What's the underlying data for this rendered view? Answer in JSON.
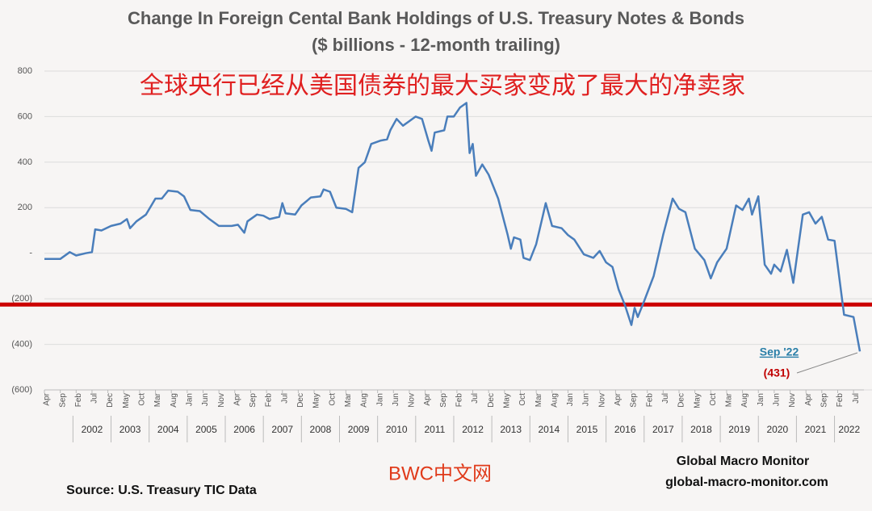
{
  "chart_data": {
    "type": "line",
    "title": "Change In Foreign Cental Bank Holdings of U.S. Treasury Notes & Bonds",
    "subtitle": "($ billions - 12-month trailing)",
    "headline": "全球央行已经从美国债券的最大买家变成了最大的净卖家",
    "watermark": "BWC中文网",
    "source": "Source:  U.S. Treasury TIC Data",
    "brand": "Global Macro Monitor",
    "website": "global-macro-monitor.com",
    "last_point_label": "Sep '22",
    "last_value_label": "(431)",
    "reference_line": {
      "value": -225,
      "color": "#cc0000"
    },
    "color": "#4a7ebb",
    "grid": true,
    "xlim": [
      "2001-04",
      "2022-09"
    ],
    "ylim": [
      -600,
      800
    ],
    "yticks": [
      {
        "value": -600,
        "label": "(600)"
      },
      {
        "value": -400,
        "label": "(400)"
      },
      {
        "value": -200,
        "label": "(200)"
      },
      {
        "value": 0,
        "label": "-"
      },
      200,
      400,
      600,
      800
    ],
    "xticks": [
      {
        "value": "2001-04",
        "label": "Apr"
      },
      {
        "value": "2001-09",
        "label": "Sep"
      },
      {
        "value": "2002-02",
        "label": "Feb"
      },
      {
        "value": "2002-07",
        "label": "Jul"
      },
      {
        "value": "2002-12",
        "label": "Dec"
      },
      {
        "value": "2003-05",
        "label": "May"
      },
      {
        "value": "2003-10",
        "label": "Oct"
      },
      {
        "value": "2004-03",
        "label": "Mar"
      },
      {
        "value": "2004-08",
        "label": "Aug"
      },
      {
        "value": "2005-01",
        "label": "Jan"
      },
      {
        "value": "2005-06",
        "label": "Jun"
      },
      {
        "value": "2005-11",
        "label": "Nov"
      },
      {
        "value": "2006-04",
        "label": "Apr"
      },
      {
        "value": "2006-09",
        "label": "Sep"
      },
      {
        "value": "2007-02",
        "label": "Feb"
      },
      {
        "value": "2007-07",
        "label": "Jul"
      },
      {
        "value": "2007-12",
        "label": "Dec"
      },
      {
        "value": "2008-05",
        "label": "May"
      },
      {
        "value": "2008-10",
        "label": "Oct"
      },
      {
        "value": "2009-03",
        "label": "Mar"
      },
      {
        "value": "2009-08",
        "label": "Aug"
      },
      {
        "value": "2010-01",
        "label": "Jan"
      },
      {
        "value": "2010-06",
        "label": "Jun"
      },
      {
        "value": "2010-11",
        "label": "Nov"
      },
      {
        "value": "2011-04",
        "label": "Apr"
      },
      {
        "value": "2011-09",
        "label": "Sep"
      },
      {
        "value": "2012-02",
        "label": "Feb"
      },
      {
        "value": "2012-07",
        "label": "Jul"
      },
      {
        "value": "2012-12",
        "label": "Dec"
      },
      {
        "value": "2013-05",
        "label": "May"
      },
      {
        "value": "2013-10",
        "label": "Oct"
      },
      {
        "value": "2014-03",
        "label": "Mar"
      },
      {
        "value": "2014-08",
        "label": "Aug"
      },
      {
        "value": "2015-01",
        "label": "Jan"
      },
      {
        "value": "2015-06",
        "label": "Jun"
      },
      {
        "value": "2015-11",
        "label": "Nov"
      },
      {
        "value": "2016-04",
        "label": "Apr"
      },
      {
        "value": "2016-09",
        "label": "Sep"
      },
      {
        "value": "2017-02",
        "label": "Feb"
      },
      {
        "value": "2017-07",
        "label": "Jul"
      },
      {
        "value": "2017-12",
        "label": "Dec"
      },
      {
        "value": "2018-05",
        "label": "May"
      },
      {
        "value": "2018-10",
        "label": "Oct"
      },
      {
        "value": "2019-03",
        "label": "Mar"
      },
      {
        "value": "2019-08",
        "label": "Aug"
      },
      {
        "value": "2020-01",
        "label": "Jan"
      },
      {
        "value": "2020-06",
        "label": "Jun"
      },
      {
        "value": "2020-11",
        "label": "Nov"
      },
      {
        "value": "2021-04",
        "label": "Apr"
      },
      {
        "value": "2021-09",
        "label": "Sep"
      },
      {
        "value": "2022-02",
        "label": "Feb"
      },
      {
        "value": "2022-07",
        "label": "Jul"
      }
    ],
    "year_labels": [
      "2002",
      "2003",
      "2004",
      "2005",
      "2006",
      "2007",
      "2008",
      "2009",
      "2010",
      "2011",
      "2012",
      "2013",
      "2014",
      "2015",
      "2016",
      "2017",
      "2018",
      "2019",
      "2020",
      "2021",
      "2022"
    ],
    "x": [
      "2001-04",
      "2001-09",
      "2001-12",
      "2002-02",
      "2002-05",
      "2002-07",
      "2002-08",
      "2002-10",
      "2003-01",
      "2003-04",
      "2003-06",
      "2003-07",
      "2003-09",
      "2003-12",
      "2004-03",
      "2004-05",
      "2004-07",
      "2004-10",
      "2004-12",
      "2005-02",
      "2005-05",
      "2005-08",
      "2005-11",
      "2006-03",
      "2006-05",
      "2006-07",
      "2006-08",
      "2006-11",
      "2007-01",
      "2007-03",
      "2007-06",
      "2007-07",
      "2007-08",
      "2007-11",
      "2008-01",
      "2008-04",
      "2008-07",
      "2008-08",
      "2008-10",
      "2008-12",
      "2009-03",
      "2009-05",
      "2009-07",
      "2009-09",
      "2009-11",
      "2010-02",
      "2010-04",
      "2010-05",
      "2010-07",
      "2010-09",
      "2010-11",
      "2011-01",
      "2011-03",
      "2011-05",
      "2011-06",
      "2011-07",
      "2011-10",
      "2011-11",
      "2012-01",
      "2012-03",
      "2012-05",
      "2012-06",
      "2012-07",
      "2012-08",
      "2012-10",
      "2012-12",
      "2013-03",
      "2013-06",
      "2013-07",
      "2013-08",
      "2013-10",
      "2013-11",
      "2014-01",
      "2014-03",
      "2014-05",
      "2014-06",
      "2014-08",
      "2014-11",
      "2015-01",
      "2015-03",
      "2015-06",
      "2015-09",
      "2015-11",
      "2016-01",
      "2016-03",
      "2016-05",
      "2016-07",
      "2016-09",
      "2016-10",
      "2016-11",
      "2017-01",
      "2017-04",
      "2017-07",
      "2017-10",
      "2017-12",
      "2018-02",
      "2018-05",
      "2018-08",
      "2018-10",
      "2018-12",
      "2019-03",
      "2019-06",
      "2019-08",
      "2019-10",
      "2019-11",
      "2020-01",
      "2020-03",
      "2020-05",
      "2020-06",
      "2020-08",
      "2020-10",
      "2020-12",
      "2021-03",
      "2021-05",
      "2021-07",
      "2021-09",
      "2021-11",
      "2022-01",
      "2022-04",
      "2022-07",
      "2022-09"
    ],
    "values": [
      -25,
      -25,
      5,
      -10,
      0,
      5,
      105,
      100,
      120,
      130,
      150,
      110,
      140,
      170,
      240,
      240,
      275,
      270,
      250,
      190,
      185,
      150,
      120,
      120,
      125,
      90,
      140,
      170,
      165,
      150,
      160,
      220,
      175,
      170,
      210,
      245,
      250,
      280,
      270,
      200,
      195,
      180,
      375,
      400,
      480,
      495,
      500,
      540,
      590,
      560,
      580,
      600,
      590,
      495,
      450,
      530,
      540,
      600,
      600,
      640,
      660,
      440,
      480,
      340,
      390,
      345,
      240,
      80,
      20,
      70,
      60,
      -20,
      -30,
      40,
      160,
      220,
      120,
      110,
      80,
      60,
      -5,
      -20,
      10,
      -40,
      -60,
      -160,
      -230,
      -315,
      -240,
      -280,
      -210,
      -100,
      80,
      240,
      195,
      180,
      20,
      -30,
      -110,
      -40,
      20,
      210,
      190,
      240,
      170,
      250,
      -50,
      -90,
      -50,
      -80,
      15,
      -130,
      170,
      180,
      130,
      160,
      60,
      55,
      -270,
      -280,
      -431
    ]
  }
}
